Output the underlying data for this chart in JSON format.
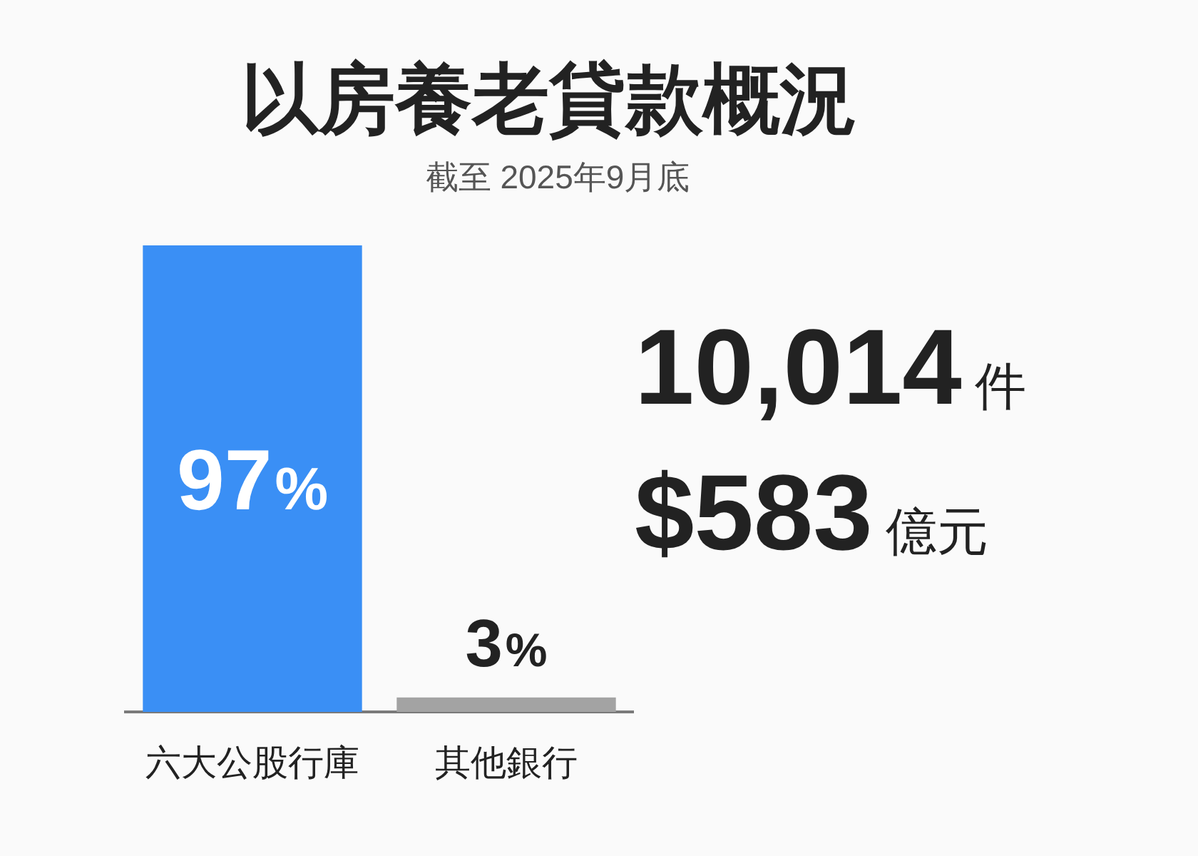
{
  "chart_data": {
    "type": "bar",
    "title": "以房養老貸款概況",
    "subtitle": "截至 2025年9月底",
    "categories": [
      "六大公股行庫",
      "其他銀行"
    ],
    "values": [
      97,
      3
    ],
    "colors": [
      "#3a8ff5",
      "#a3a3a3"
    ],
    "value_labels": [
      "97%",
      "3%"
    ],
    "tick_labels": "x",
    "annotations": [
      "10,014件",
      "$583億元"
    ]
  }
}
